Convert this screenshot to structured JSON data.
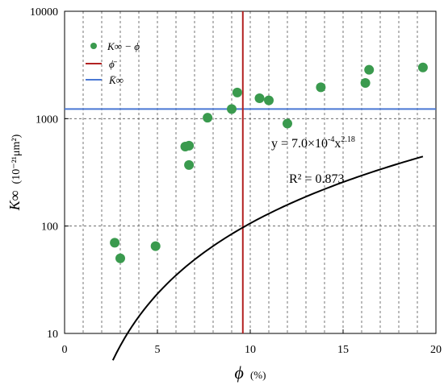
{
  "chart_data": {
    "type": "scatter",
    "xlabel_symbol": "ϕ",
    "xlabel_unit": "(%)",
    "ylabel_symbol": "K∞",
    "ylabel_unit": "(10⁻²¹μm²)",
    "xlim": [
      0,
      20
    ],
    "ylim": [
      10,
      10000
    ],
    "y_scale": "log",
    "x_ticks": [
      0,
      5,
      10,
      15,
      20
    ],
    "y_ticks": [
      10,
      100,
      1000,
      10000
    ],
    "grid": "dashed",
    "legend_position": "top-left",
    "legend": [
      "K∞ − ϕ",
      "ϕ̄",
      "K̄∞"
    ],
    "series": [
      {
        "name": "K∞ − ϕ",
        "color": "#3a9a4e",
        "points": [
          {
            "x": 2.7,
            "y": 70
          },
          {
            "x": 3.0,
            "y": 50
          },
          {
            "x": 4.9,
            "y": 65
          },
          {
            "x": 6.5,
            "y": 550
          },
          {
            "x": 6.7,
            "y": 560
          },
          {
            "x": 6.7,
            "y": 370
          },
          {
            "x": 7.7,
            "y": 1020
          },
          {
            "x": 9.0,
            "y": 1230
          },
          {
            "x": 9.3,
            "y": 1750
          },
          {
            "x": 10.5,
            "y": 1550
          },
          {
            "x": 11.0,
            "y": 1480
          },
          {
            "x": 12.0,
            "y": 900
          },
          {
            "x": 13.8,
            "y": 1960
          },
          {
            "x": 16.2,
            "y": 2150
          },
          {
            "x": 16.4,
            "y": 2850
          },
          {
            "x": 19.3,
            "y": 3000
          }
        ]
      }
    ],
    "fit": {
      "coef": 0.0007,
      "exponent": 2.18,
      "x_range": [
        2.6,
        19.3
      ],
      "color": "#000000"
    },
    "mean_phi": {
      "x": 9.6,
      "color": "#b22222"
    },
    "mean_k": {
      "y": 1230,
      "color": "#4a78d4"
    },
    "equation": {
      "prefix": "y = 7.0×10",
      "exp1": "-4",
      "mid": "x",
      "exp2": "2.18"
    },
    "r2": "R² = 0.873"
  }
}
